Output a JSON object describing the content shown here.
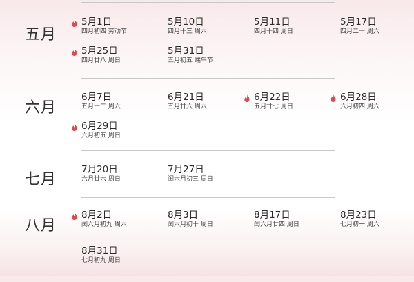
{
  "colors": {
    "accent": "#e0484c",
    "divider": "#c8c8c8"
  },
  "months": [
    {
      "label": "五月",
      "entries": [
        {
          "date": "5月1日",
          "lunar": "四月初四 劳动节",
          "hot": true
        },
        {
          "date": "5月10日",
          "lunar": "四月十三 周六",
          "hot": false
        },
        {
          "date": "5月11日",
          "lunar": "四月十四 周日",
          "hot": false
        },
        {
          "date": "5月17日",
          "lunar": "四月二十 周六",
          "hot": false
        },
        {
          "date": "5月25日",
          "lunar": "四月廿八 周日",
          "hot": true
        },
        {
          "date": "5月31日",
          "lunar": "五月初五 端午节",
          "hot": false
        }
      ]
    },
    {
      "label": "六月",
      "entries": [
        {
          "date": "6月7日",
          "lunar": "五月十二 周六",
          "hot": false
        },
        {
          "date": "6月21日",
          "lunar": "五月廿六 周六",
          "hot": false
        },
        {
          "date": "6月22日",
          "lunar": "五月廿七 周日",
          "hot": true
        },
        {
          "date": "6月28日",
          "lunar": "六月初四 周六",
          "hot": true
        },
        {
          "date": "6月29日",
          "lunar": "六月初五 周日",
          "hot": true
        }
      ]
    },
    {
      "label": "七月",
      "entries": [
        {
          "date": "7月20日",
          "lunar": "六月廿六 周日",
          "hot": false
        },
        {
          "date": "7月27日",
          "lunar": "闰六月初三 周日",
          "hot": false
        }
      ]
    },
    {
      "label": "八月",
      "entries": [
        {
          "date": "8月2日",
          "lunar": "闰六月初九 周六",
          "hot": true
        },
        {
          "date": "8月3日",
          "lunar": "闰六月初十 周日",
          "hot": false
        },
        {
          "date": "8月17日",
          "lunar": "闰六月廿四 周日",
          "hot": false
        },
        {
          "date": "8月23日",
          "lunar": "七月初一 周六",
          "hot": false
        },
        {
          "date": "8月31日",
          "lunar": "七月初九 周日",
          "hot": false
        }
      ]
    }
  ]
}
